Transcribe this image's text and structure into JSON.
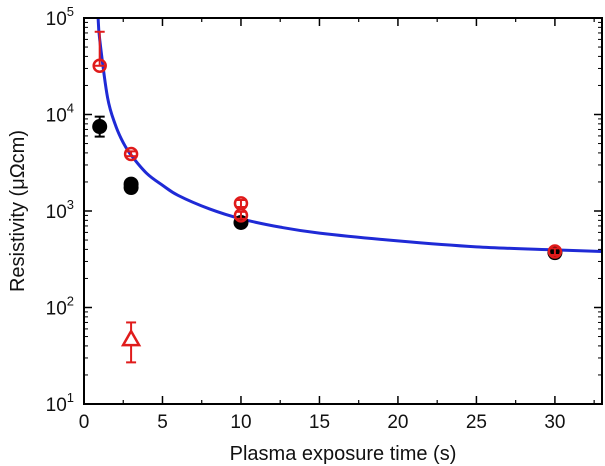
{
  "chart_data": {
    "type": "scatter",
    "xlabel": "Plasma exposure time (s)",
    "ylabel": "Resistivity (μΩcm)",
    "xlim": [
      0,
      33
    ],
    "ylim": [
      10,
      100000
    ],
    "yscale": "log",
    "x_ticks": [
      0,
      5,
      10,
      15,
      20,
      25,
      30
    ],
    "y_ticks": [
      {
        "value": 10,
        "base": "10",
        "exp": "1"
      },
      {
        "value": 100,
        "base": "10",
        "exp": "2"
      },
      {
        "value": 1000,
        "base": "10",
        "exp": "3"
      },
      {
        "value": 10000,
        "base": "10",
        "exp": "4"
      },
      {
        "value": 100000,
        "base": "10",
        "exp": "5"
      }
    ],
    "grid": false,
    "series": [
      {
        "marker": "filled-circle",
        "color": "#000000",
        "points": [
          {
            "x": 1,
            "y": 7500,
            "err_low": 5900,
            "err_high": 9500
          },
          {
            "x": 3,
            "y": 1900,
            "err_low": 1750,
            "err_high": 2050
          },
          {
            "x": 3,
            "y": 1750,
            "err_low": 1620,
            "err_high": 1880
          },
          {
            "x": 10,
            "y": 760,
            "err_low": 690,
            "err_high": 840
          },
          {
            "x": 30,
            "y": 370,
            "err_low": 335,
            "err_high": 410
          }
        ]
      },
      {
        "marker": "open-circle",
        "color": "#e01b1b",
        "points": [
          {
            "x": 1,
            "y": 32000,
            "err_low": 32000,
            "err_high": 72000
          },
          {
            "x": 3,
            "y": 3900,
            "err_low": 3700,
            "err_high": 4150
          },
          {
            "x": 10,
            "y": 1200,
            "err_low": 1100,
            "err_high": 1300
          },
          {
            "x": 10,
            "y": 900,
            "err_low": 830,
            "err_high": 980
          },
          {
            "x": 30,
            "y": 380,
            "err_low": 350,
            "err_high": 410
          }
        ]
      },
      {
        "marker": "open-triangle",
        "color": "#e01b1b",
        "points": [
          {
            "x": 3,
            "y": 47,
            "err_low": 27,
            "err_high": 70
          }
        ]
      }
    ],
    "fit_curve": {
      "color": "#1f2ad6",
      "points": [
        {
          "x": 0.9,
          "y": 100000
        },
        {
          "x": 1.0,
          "y": 60000
        },
        {
          "x": 1.5,
          "y": 15000
        },
        {
          "x": 2.0,
          "y": 7800
        },
        {
          "x": 2.5,
          "y": 5100
        },
        {
          "x": 3.0,
          "y": 3800
        },
        {
          "x": 4.0,
          "y": 2450
        },
        {
          "x": 5.0,
          "y": 1850
        },
        {
          "x": 6.0,
          "y": 1450
        },
        {
          "x": 8.0,
          "y": 1050
        },
        {
          "x": 10.0,
          "y": 830
        },
        {
          "x": 12.5,
          "y": 680
        },
        {
          "x": 15.0,
          "y": 590
        },
        {
          "x": 20.0,
          "y": 490
        },
        {
          "x": 25.0,
          "y": 425
        },
        {
          "x": 30.0,
          "y": 395
        },
        {
          "x": 33.0,
          "y": 380
        }
      ]
    }
  }
}
